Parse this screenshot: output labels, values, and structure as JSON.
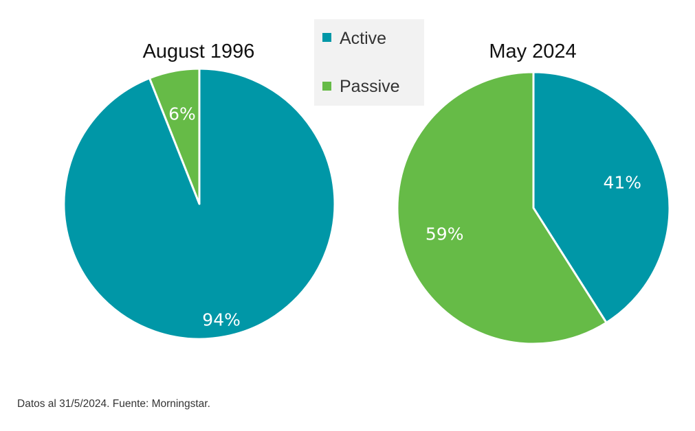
{
  "chart_data": [
    {
      "type": "pie",
      "title": "August 1996",
      "slices": [
        {
          "label": "Active",
          "value": 94,
          "display": "94%",
          "color": "#0097A7"
        },
        {
          "label": "Passive",
          "value": 6,
          "display": "6%",
          "color": "#66BB47"
        }
      ]
    },
    {
      "type": "pie",
      "title": "May 2024",
      "slices": [
        {
          "label": "Active",
          "value": 41,
          "display": "41%",
          "color": "#0097A7"
        },
        {
          "label": "Passive",
          "value": 59,
          "display": "59%",
          "color": "#66BB47"
        }
      ]
    }
  ],
  "legend": {
    "placement": "top-center",
    "items": [
      {
        "label": "Active",
        "color": "#0097A7"
      },
      {
        "label": "Passive",
        "color": "#66BB47"
      }
    ]
  },
  "source_note": "Datos al 31/5/2024. Fuente: Morningstar."
}
